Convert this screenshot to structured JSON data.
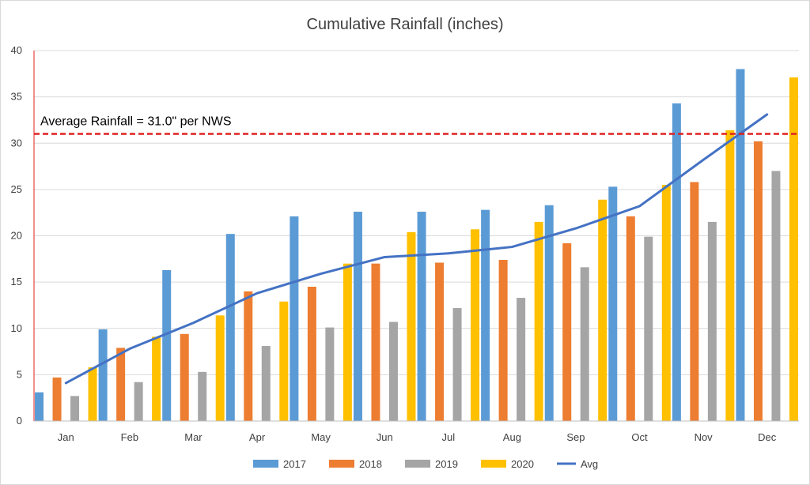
{
  "chart_data": {
    "type": "bar",
    "title": "Cumulative Rainfall (inches)",
    "xlabel": "",
    "ylabel": "",
    "ylim": [
      0,
      40
    ],
    "yticks": [
      0,
      5,
      10,
      15,
      20,
      25,
      30,
      35,
      40
    ],
    "grid": true,
    "legend_position": "bottom",
    "categories": [
      "Jan",
      "Feb",
      "Mar",
      "Apr",
      "May",
      "Jun",
      "Jul",
      "Aug",
      "Sep",
      "Oct",
      "Nov",
      "Dec"
    ],
    "series": [
      {
        "name": "2017",
        "type": "bar",
        "color": "#5B9BD5",
        "values": [
          3.1,
          9.9,
          16.3,
          20.2,
          22.1,
          22.6,
          22.6,
          22.8,
          23.3,
          25.3,
          34.3,
          38.0
        ]
      },
      {
        "name": "2018",
        "type": "bar",
        "color": "#ED7D31",
        "values": [
          4.7,
          7.9,
          9.4,
          14.0,
          14.5,
          17.0,
          17.1,
          17.4,
          19.2,
          22.1,
          25.8,
          30.2
        ]
      },
      {
        "name": "2019",
        "type": "bar",
        "color": "#A5A5A5",
        "values": [
          2.7,
          4.2,
          5.3,
          8.1,
          10.1,
          10.7,
          12.2,
          13.3,
          16.6,
          19.9,
          21.5,
          27.0
        ]
      },
      {
        "name": "2020",
        "type": "bar",
        "color": "#FFC000",
        "values": [
          5.8,
          9.1,
          11.4,
          12.9,
          17.0,
          20.4,
          20.7,
          21.5,
          23.9,
          25.5,
          31.4,
          37.1
        ]
      },
      {
        "name": "Avg",
        "type": "line",
        "color": "#4472C4",
        "values": [
          4.1,
          7.8,
          10.6,
          13.8,
          15.9,
          17.7,
          18.1,
          18.8,
          20.8,
          23.2,
          28.2,
          33.1
        ]
      }
    ],
    "reference_line": {
      "value": 31.0,
      "color": "#E02020",
      "style": "dashed"
    },
    "annotation": "Average Rainfall = 31.0\" per NWS"
  }
}
